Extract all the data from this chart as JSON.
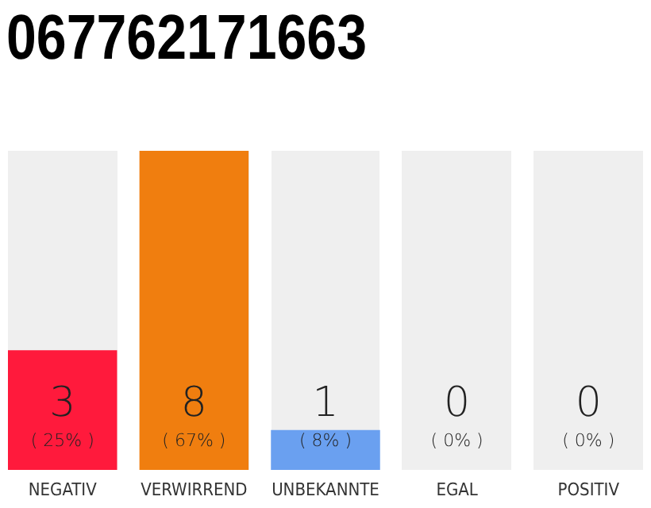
{
  "chart_data": {
    "type": "bar",
    "title": "067762171663",
    "categories": [
      "NEGATIV",
      "VERWIRREND",
      "UNBEKANNTE",
      "EGAL",
      "POSITIV"
    ],
    "values": [
      3,
      8,
      1,
      0,
      0
    ],
    "colors": [
      "#ff1a3c",
      "#f07e0f",
      "#6aa0f0",
      "#8bc56a",
      "#2aa84a"
    ],
    "value_labels": [
      "3\n( 25% )",
      "8\n( 67% )",
      "1\n( 8% )",
      "0\n( 0% )",
      "0\n( 0% )"
    ]
  }
}
